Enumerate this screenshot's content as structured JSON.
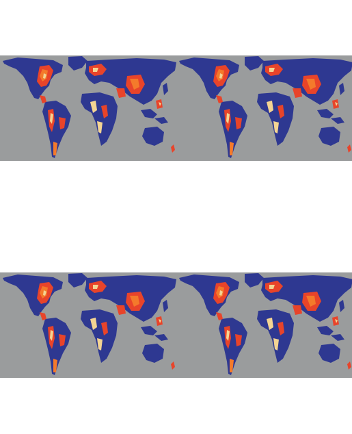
{
  "figure": {
    "panel_count": 2,
    "repeats_per_panel": 2,
    "content": "none"
  },
  "colors": {
    "ocean": "#9a9c9d",
    "land_low": "#2e3891",
    "land_mid": "#e8442a",
    "land_high": "#f3d493",
    "accent_orange": "#f47a2b"
  }
}
